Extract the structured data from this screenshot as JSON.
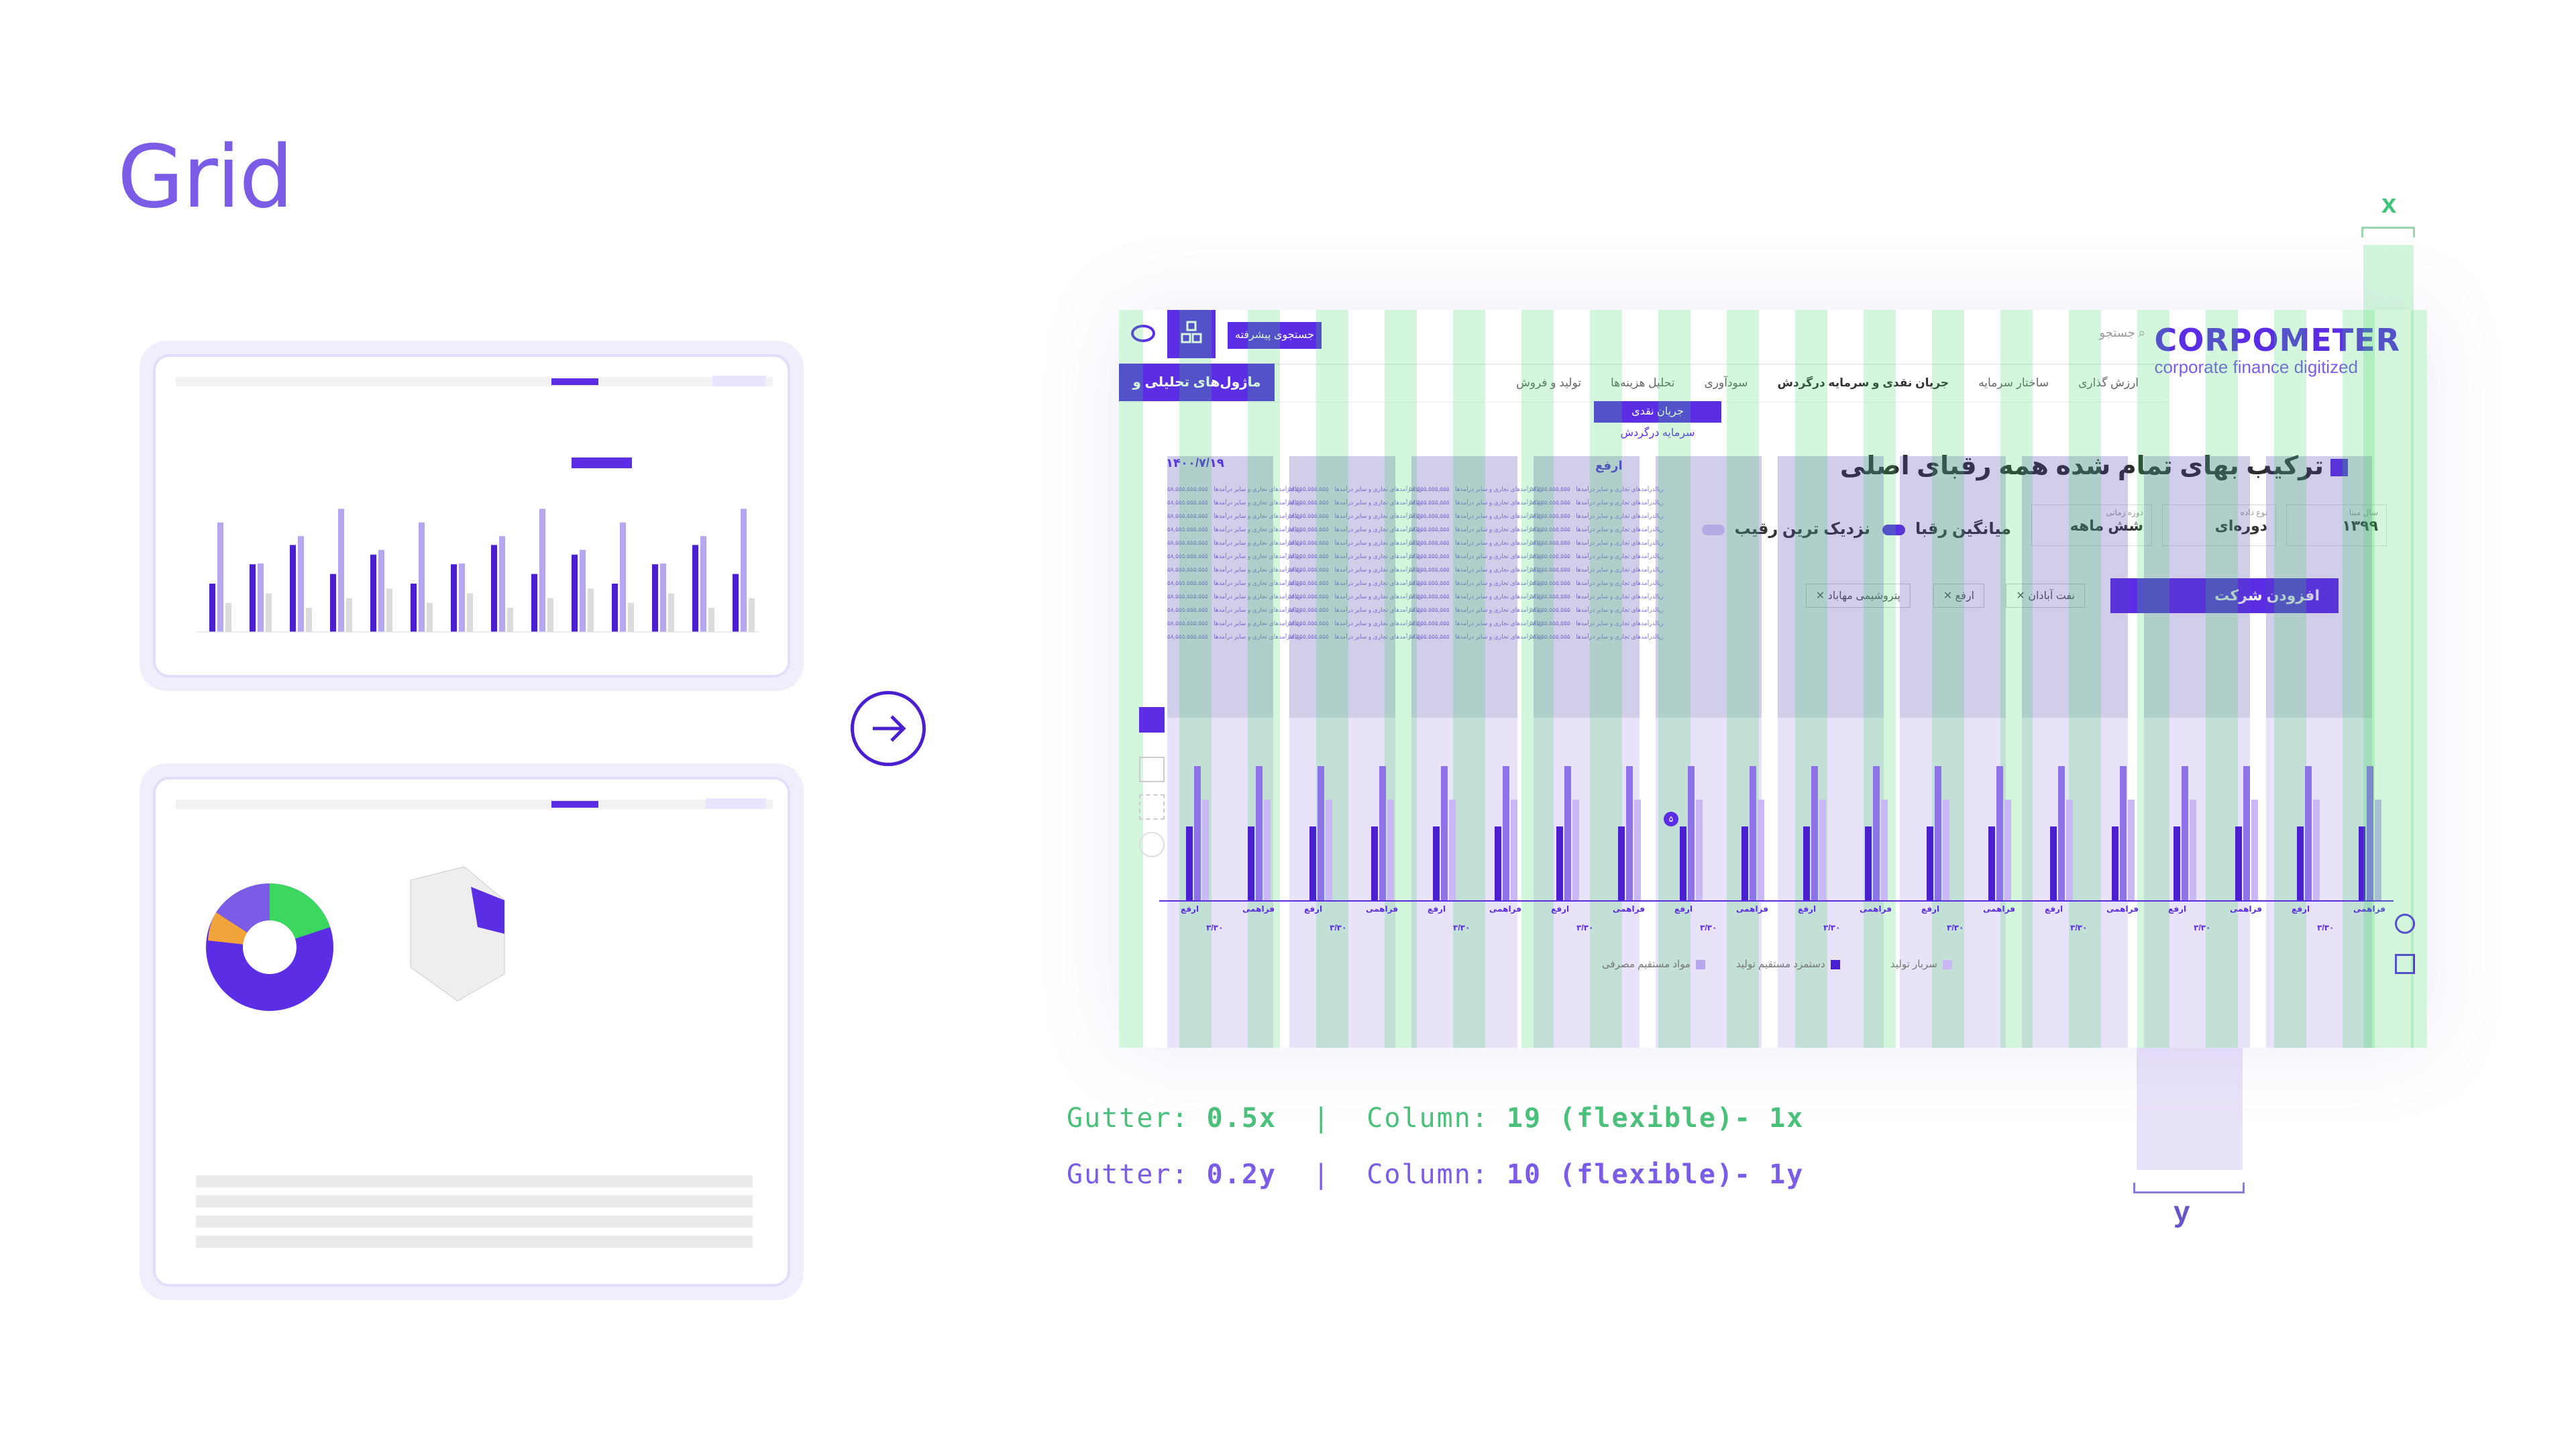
{
  "heading": "Grid",
  "brand": {
    "name": "CORPOMETER",
    "tagline": "corporate finance digitized",
    "accent": "#5b2ee6",
    "green": "#3cd75f"
  },
  "topbar": {
    "search_placeholder": "جستجو",
    "advanced_search": "جستجوی پیشرفته"
  },
  "nav": {
    "active": "ماژول‌های تحلیلی و مالی",
    "items": [
      "ارزش گذاری",
      "ساختار سرمایه",
      "جریان نقدی و سرمایه درگردش",
      "سودآوری",
      "تحلیل هزینه‌ها",
      "تولید و فروش"
    ]
  },
  "submenu": [
    "جریان نقدی",
    "سرمایه درگردش"
  ],
  "chart": {
    "title": "ترکیب بهای تمام شده همه رقبای اصلی",
    "date": "۱۴۰۰/۷/۱۹",
    "controls": [
      {
        "label": "سال مبنا",
        "value": "۱۳۹۹"
      },
      {
        "label": "نوع داده",
        "value": "دوره‌ای"
      },
      {
        "label": "دوره زمانی",
        "value": "شش ماهه"
      }
    ],
    "toggles": [
      "میانگین رقبا",
      "نزدیک ترین رقیب"
    ],
    "add_company": "افزودن شرکت",
    "chips": [
      "نفت آبادان",
      "ارفع",
      "پتروشیمی مهاباد"
    ],
    "legend": [
      "مواد مستقیم مصرفی",
      "دستمزد مستقیم تولید",
      "سربار تولید"
    ],
    "right_label": "ارفع",
    "legend_row_text": "درآمدهای تجاری و سایر درآمدها",
    "legend_row_value": "۵۸,۵۵۵,۵۵۵,۵۵۵ ریال",
    "x_top_labels": [
      "ارفع",
      "فراهمی"
    ],
    "x_bottom_label": "۳/۳۰",
    "marker_value": "۵"
  },
  "annotations": {
    "x": "x",
    "y": "y",
    "gutter_label": "Gutter:",
    "column_label": "Column:",
    "row1": {
      "gutter": "0.5x",
      "column": "19 (flexible)- 1x"
    },
    "row2": {
      "gutter": "0.2y",
      "column": "10 (flexible)- 1y"
    },
    "separator": "|"
  }
}
